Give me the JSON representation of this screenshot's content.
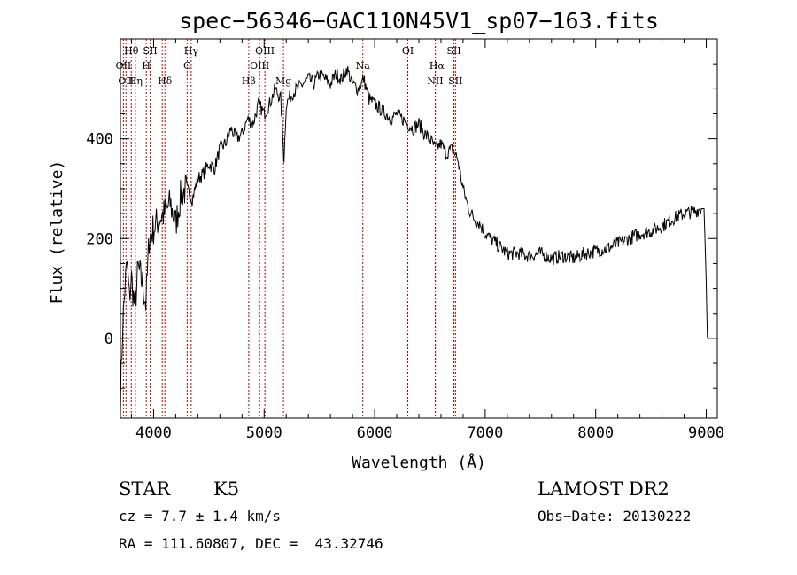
{
  "chart_data": {
    "type": "line",
    "title": "spec−56346−GAC110N45V1_sp07−163.fits",
    "xlabel": "Wavelength (Å)",
    "ylabel": "Flux (relative)",
    "xlim": [
      3700,
      9100
    ],
    "ylim": [
      -160,
      600
    ],
    "xticks": [
      4000,
      5000,
      6000,
      7000,
      8000,
      9000
    ],
    "yticks": [
      0,
      200,
      400
    ],
    "grid": false,
    "series": [
      {
        "x": [
          3700,
          3720,
          3740,
          3760,
          3780,
          3800,
          3830,
          3860,
          3900,
          3930,
          3960,
          4000,
          4050,
          4100,
          4150,
          4200,
          4250,
          4300,
          4350,
          4400,
          4450,
          4500,
          4550,
          4600,
          4650,
          4700,
          4750,
          4800,
          4850,
          4900,
          4950,
          5000,
          5050,
          5100,
          5150,
          5180,
          5200,
          5250,
          5300,
          5350,
          5400,
          5450,
          5500,
          5550,
          5600,
          5650,
          5700,
          5750,
          5800,
          5850,
          5900,
          5950,
          6000,
          6050,
          6100,
          6150,
          6200,
          6250,
          6300,
          6350,
          6400,
          6450,
          6500,
          6550,
          6600,
          6650,
          6700,
          6750,
          6800,
          6850,
          6900,
          6950,
          7000,
          7050,
          7100,
          7150,
          7200,
          7300,
          7400,
          7500,
          7600,
          7700,
          7800,
          7900,
          8000,
          8100,
          8200,
          8300,
          8400,
          8500,
          8600,
          8700,
          8800,
          8900,
          8950,
          8980,
          9000,
          9010
        ],
        "values": [
          -120,
          20,
          100,
          150,
          80,
          120,
          60,
          140,
          110,
          70,
          200,
          220,
          240,
          250,
          270,
          230,
          290,
          300,
          280,
          320,
          330,
          350,
          340,
          380,
          390,
          420,
          400,
          410,
          440,
          430,
          470,
          450,
          470,
          500,
          480,
          360,
          470,
          490,
          500,
          510,
          520,
          510,
          530,
          520,
          510,
          530,
          520,
          540,
          510,
          500,
          520,
          480,
          470,
          460,
          450,
          440,
          450,
          440,
          430,
          420,
          430,
          410,
          400,
          380,
          390,
          370,
          380,
          360,
          300,
          260,
          240,
          230,
          210,
          200,
          190,
          180,
          170,
          170,
          165,
          170,
          160,
          165,
          160,
          170,
          175,
          180,
          190,
          200,
          210,
          215,
          225,
          240,
          250,
          255,
          260,
          260,
          110,
          0
        ]
      }
    ],
    "lines": [
      {
        "wave": 3727,
        "labels": [
          "OII"
        ],
        "rows": [
          2
        ]
      },
      {
        "wave": 3750,
        "labels": [
          "OII"
        ],
        "rows": [
          3
        ]
      },
      {
        "wave": 3798,
        "labels": [
          "Hθ"
        ],
        "rows": [
          1
        ]
      },
      {
        "wave": 3835,
        "labels": [
          "Hη"
        ],
        "rows": [
          3
        ]
      },
      {
        "wave": 3934,
        "labels": [
          "H"
        ],
        "rows": [
          2
        ]
      },
      {
        "wave": 3969,
        "labels": [
          "SII"
        ],
        "rows": [
          1
        ]
      },
      {
        "wave": 4102,
        "labels": [
          "Hδ"
        ],
        "rows": [
          3
        ]
      },
      {
        "wave": 4078,
        "labels": [
          ""
        ],
        "rows": [
          1
        ]
      },
      {
        "wave": 4304,
        "labels": [
          "G"
        ],
        "rows": [
          2
        ]
      },
      {
        "wave": 4340,
        "labels": [
          "Hγ"
        ],
        "rows": [
          1
        ]
      },
      {
        "wave": 4861,
        "labels": [
          "Hβ"
        ],
        "rows": [
          3
        ]
      },
      {
        "wave": 4959,
        "labels": [
          "OIII"
        ],
        "rows": [
          2
        ]
      },
      {
        "wave": 5007,
        "labels": [
          "OIII"
        ],
        "rows": [
          1
        ]
      },
      {
        "wave": 5175,
        "labels": [
          "Mg"
        ],
        "rows": [
          3
        ]
      },
      {
        "wave": 5893,
        "labels": [
          "Na"
        ],
        "rows": [
          2
        ]
      },
      {
        "wave": 6300,
        "labels": [
          "OI"
        ],
        "rows": [
          1
        ]
      },
      {
        "wave": 6548,
        "labels": [
          "NII"
        ],
        "rows": [
          3
        ]
      },
      {
        "wave": 6563,
        "labels": [
          "Hα"
        ],
        "rows": [
          2
        ]
      },
      {
        "wave": 6717,
        "labels": [
          "SII"
        ],
        "rows": [
          1
        ]
      },
      {
        "wave": 6731,
        "labels": [
          "SII"
        ],
        "rows": [
          3
        ]
      }
    ]
  },
  "info": {
    "class_label": "STAR",
    "subclass_label": "K5",
    "cz": "cz = 7.7 ± 1.4 km/s",
    "coords": "RA = 111.60807, DEC =  43.32746",
    "survey": "LAMOST DR2",
    "obs_date": "Obs−Date: 20130222"
  }
}
